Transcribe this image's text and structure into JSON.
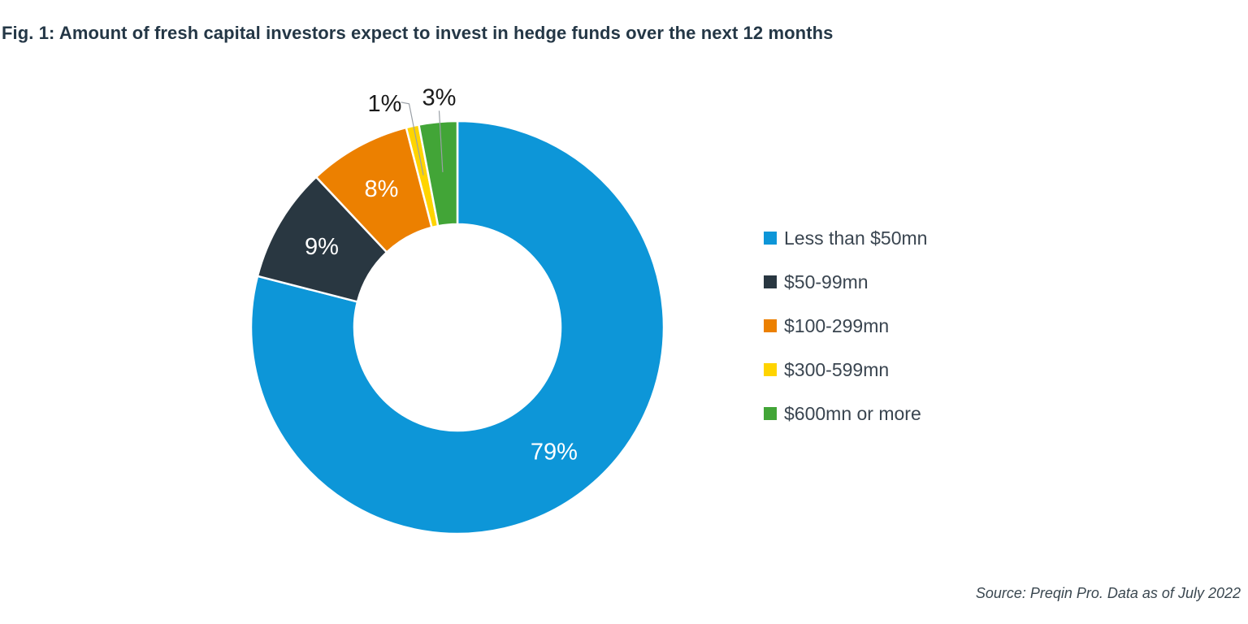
{
  "chart_data": {
    "type": "pie",
    "subtype": "donut",
    "title": "Fig. 1: Amount of fresh capital investors expect to invest in hedge funds over the next 12 months",
    "categories": [
      "Less than $50mn",
      "$50-99mn",
      "$100-299mn",
      "$300-599mn",
      "$600mn or more"
    ],
    "values": [
      79,
      9,
      8,
      1,
      3
    ],
    "data_labels": [
      "79%",
      "9%",
      "8%",
      "1%",
      "3%"
    ],
    "colors": [
      "#0D96D8",
      "#293741",
      "#EC8000",
      "#FFD400",
      "#42A537"
    ],
    "label_text_colors": [
      "#ffffff",
      "#ffffff",
      "#ffffff",
      "#1a1a1a",
      "#1a1a1a"
    ],
    "hole_ratio": 0.5,
    "start_angle_deg": 0,
    "direction": "clockwise",
    "legend_position": "right",
    "leader_line_color": "#9aa0a6",
    "source": "Source: Preqin Pro. Data as of July 2022"
  },
  "theme": {
    "title_color": "#243746",
    "legend_text_color": "#3A4550",
    "source_text_color": "#3A4750",
    "slice_separator_color": "#ffffff"
  }
}
